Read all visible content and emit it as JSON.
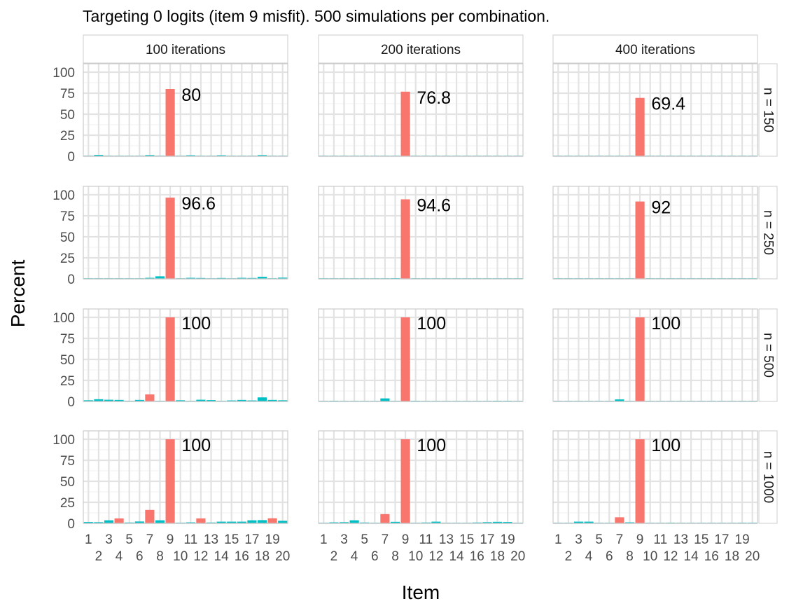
{
  "chart_data": {
    "type": "bar",
    "title": "Targeting 0 logits (item 9 misfit). 500 simulations per combination.",
    "xlabel": "Item",
    "ylabel": "Percent",
    "ylim": [
      0,
      110
    ],
    "yticks": [
      0,
      25,
      50,
      75,
      100
    ],
    "categories": [
      "1",
      "2",
      "3",
      "4",
      "5",
      "6",
      "7",
      "8",
      "9",
      "10",
      "11",
      "12",
      "13",
      "14",
      "15",
      "16",
      "17",
      "18",
      "19",
      "20"
    ],
    "column_facets": [
      "100 iterations",
      "200 iterations",
      "400 iterations"
    ],
    "row_facets": [
      "n = 150",
      "n = 250",
      "n = 500",
      "n = 1000"
    ],
    "colors": {
      "flagged": "#F8766D",
      "other": "#00BFC4"
    },
    "grid": true,
    "legend": "none",
    "panels": [
      {
        "row": "n = 150",
        "col": "100 iterations",
        "label": "80",
        "values": [
          0.4,
          1.6,
          0.4,
          0.6,
          0.4,
          0.4,
          1.4,
          0.6,
          80,
          0.2,
          1.2,
          0.6,
          0.6,
          1.2,
          0.4,
          0.4,
          0.4,
          1.4,
          0.4,
          0.4
        ],
        "flagged": [
          9
        ]
      },
      {
        "row": "n = 150",
        "col": "200 iterations",
        "label": "76.8",
        "values": [
          0,
          0.4,
          0,
          0.2,
          0.4,
          0.2,
          0.2,
          0.2,
          76.8,
          0,
          0.2,
          0.2,
          0,
          0.2,
          0.2,
          0.2,
          0.2,
          0.2,
          0,
          0.2
        ],
        "flagged": [
          9
        ]
      },
      {
        "row": "n = 150",
        "col": "400 iterations",
        "label": "69.4",
        "values": [
          0,
          0,
          0.2,
          0,
          0.2,
          0,
          0,
          0.2,
          69.4,
          0,
          0,
          0.2,
          0,
          0,
          0,
          0,
          0,
          0.2,
          0,
          0.2
        ],
        "flagged": [
          9
        ]
      },
      {
        "row": "n = 250",
        "col": "100 iterations",
        "label": "96.6",
        "values": [
          0.4,
          0.4,
          0.4,
          0.4,
          0.4,
          0.4,
          1.2,
          3,
          96.6,
          0,
          1.2,
          1,
          0.6,
          1,
          0.6,
          1.2,
          1,
          2.4,
          0.6,
          1.4
        ],
        "flagged": [
          9
        ]
      },
      {
        "row": "n = 250",
        "col": "200 iterations",
        "label": "94.6",
        "values": [
          0.2,
          0,
          0.2,
          0.2,
          0.2,
          0.2,
          0.4,
          0.8,
          94.6,
          0,
          0.4,
          0.4,
          0,
          0.2,
          0,
          0.4,
          0.2,
          0.4,
          0,
          0.2
        ],
        "flagged": [
          9
        ]
      },
      {
        "row": "n = 250",
        "col": "400 iterations",
        "label": "92",
        "values": [
          0,
          0.2,
          0,
          0,
          0,
          0,
          0.2,
          0.2,
          92,
          0,
          0.2,
          0.2,
          0,
          0,
          0,
          0,
          0.2,
          0.2,
          0,
          0
        ],
        "flagged": [
          9
        ]
      },
      {
        "row": "n = 500",
        "col": "100 iterations",
        "label": "100",
        "values": [
          1.4,
          2.6,
          2,
          1.8,
          0.6,
          1.8,
          8.4,
          0.4,
          100,
          1.4,
          0.4,
          2,
          1.6,
          0.6,
          1.2,
          1.8,
          1.2,
          4.8,
          1.8,
          1.4
        ],
        "flagged": [
          7,
          9
        ]
      },
      {
        "row": "n = 500",
        "col": "200 iterations",
        "label": "100",
        "values": [
          0.2,
          0.8,
          0.2,
          0.2,
          0.2,
          0.2,
          3.6,
          0.2,
          100,
          0.8,
          0.2,
          0.2,
          0.2,
          0.2,
          0.2,
          0.2,
          0.2,
          0.8,
          0.8,
          0.2
        ],
        "flagged": [
          9
        ]
      },
      {
        "row": "n = 500",
        "col": "400 iterations",
        "label": "100",
        "values": [
          0,
          0.4,
          0.2,
          0,
          0,
          0.2,
          2.4,
          0.2,
          100,
          0,
          0,
          0.2,
          0.2,
          0.2,
          0,
          0.2,
          0.2,
          0.2,
          0.2,
          0.2
        ],
        "flagged": [
          9
        ]
      },
      {
        "row": "n = 1000",
        "col": "100 iterations",
        "label": "100",
        "values": [
          1.6,
          1.4,
          3.6,
          5.8,
          1,
          2.2,
          16,
          3.6,
          100,
          0.8,
          1.2,
          5.8,
          1,
          2,
          2,
          2,
          3.6,
          3.8,
          6,
          3
        ],
        "flagged": [
          4,
          7,
          9,
          12,
          19
        ]
      },
      {
        "row": "n = 1000",
        "col": "200 iterations",
        "label": "100",
        "values": [
          0.4,
          1.2,
          1.4,
          3.6,
          1,
          0.6,
          11,
          1.8,
          100,
          0.4,
          1,
          2,
          0.6,
          0.4,
          0.6,
          1,
          1.4,
          1.8,
          1.6,
          0.6
        ],
        "flagged": [
          7,
          9
        ]
      },
      {
        "row": "n = 1000",
        "col": "400 iterations",
        "label": "100",
        "values": [
          0,
          0.4,
          2,
          2,
          0.4,
          0.6,
          7.2,
          1.2,
          100,
          0.4,
          0.6,
          0.8,
          0,
          0.4,
          0,
          0.4,
          0.6,
          0.4,
          0.8,
          0.8
        ],
        "flagged": [
          7,
          9
        ]
      }
    ]
  }
}
